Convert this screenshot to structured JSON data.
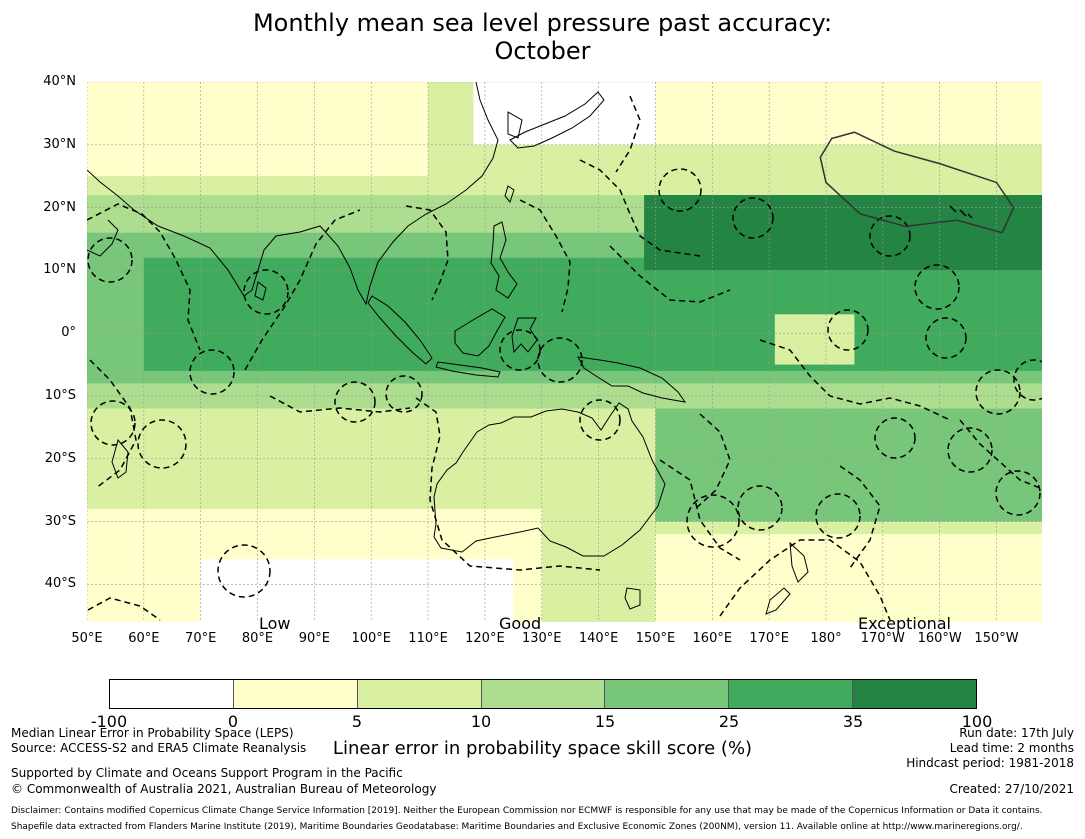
{
  "title_line1": "Monthly mean sea level pressure past accuracy:",
  "title_line2": "October",
  "map": {
    "lat_labels": [
      "40°N",
      "30°N",
      "20°N",
      "10°N",
      "0°",
      "10°S",
      "20°S",
      "30°S",
      "40°S"
    ],
    "lon_labels": [
      "50°E",
      "60°E",
      "70°E",
      "80°E",
      "90°E",
      "100°E",
      "110°E",
      "120°E",
      "130°E",
      "140°E",
      "150°E",
      "160°E",
      "170°E",
      "180°",
      "170°W",
      "160°W",
      "150°W"
    ],
    "category_labels": [
      "Low",
      "Good",
      "Exceptional"
    ],
    "extent": {
      "lon_min": 50,
      "lon_max": 218,
      "lat_min": -46,
      "lat_max": 40
    },
    "zones": [
      {
        "bin": 2,
        "lon_min": 50,
        "lon_max": 218,
        "lat_min": -46,
        "lat_max": 40
      },
      {
        "bin": 1,
        "lon_min": 150,
        "lon_max": 218,
        "lat_min": 30,
        "lat_max": 40
      },
      {
        "bin": 1,
        "lon_min": 50,
        "lon_max": 110,
        "lat_min": 25,
        "lat_max": 40
      },
      {
        "bin": 0,
        "lon_min": 118,
        "lon_max": 150,
        "lat_min": 30,
        "lat_max": 40
      },
      {
        "bin": 3,
        "lon_min": 50,
        "lon_max": 218,
        "lat_min": -12,
        "lat_max": 22
      },
      {
        "bin": 4,
        "lon_min": 50,
        "lon_max": 218,
        "lat_min": -8,
        "lat_max": 16
      },
      {
        "bin": 5,
        "lon_min": 60,
        "lon_max": 218,
        "lat_min": -6,
        "lat_max": 12
      },
      {
        "bin": 6,
        "lon_min": 148,
        "lon_max": 218,
        "lat_min": 10,
        "lat_max": 22
      },
      {
        "bin": 1,
        "lon_min": 50,
        "lon_max": 130,
        "lat_min": -46,
        "lat_max": -28
      },
      {
        "bin": 0,
        "lon_min": 70,
        "lon_max": 125,
        "lat_min": -46,
        "lat_max": -36
      },
      {
        "bin": 1,
        "lon_min": 150,
        "lon_max": 218,
        "lat_min": -46,
        "lat_max": -32
      },
      {
        "bin": 4,
        "lon_min": 150,
        "lon_max": 218,
        "lat_min": -30,
        "lat_max": -12
      },
      {
        "bin": 2,
        "lon_min": 171,
        "lon_max": 185,
        "lat_min": -5,
        "lat_max": 3
      }
    ],
    "highlight_region": {
      "lon": [
        181,
        185,
        192,
        200,
        210,
        213,
        211,
        203,
        194,
        186,
        180,
        179,
        181
      ],
      "lat": [
        31,
        32,
        29,
        27,
        24,
        20,
        16,
        18,
        17,
        19,
        24,
        28,
        31
      ]
    }
  },
  "colorbar": {
    "ticks": [
      "-100",
      "0",
      "5",
      "10",
      "15",
      "25",
      "35",
      "100"
    ],
    "colors": [
      "#ffffff",
      "#ffffcc",
      "#d9f0a3",
      "#addd8e",
      "#78c679",
      "#41ab5d",
      "#238443"
    ],
    "label": "Linear error in probability space skill score (%)"
  },
  "footer": {
    "left1": "Median Linear Error in Probability Space (LEPS)",
    "left2": "Source: ACCESS-S2 and ERA5 Climate Reanalysis",
    "left3": "Supported by Climate and Oceans Support Program in the Pacific",
    "left4": "© Commonwealth of Australia 2021, Australian Bureau of Meteorology",
    "right1": "Run date: 17th July",
    "right2": "Lead time: 2 months",
    "right3": "Hindcast period: 1981-2018",
    "created": "Created: 27/10/2021",
    "disclaimer1": "Disclaimer: Contains modified Copernicus Climate Change Service Information [2019]. Neither the European Commission nor ECMWF is responsible for any use that may be made of the Copernicus Information or Data it contains.",
    "disclaimer2": "Shapefile data extracted from Flanders Marine Institute (2019), Maritime Boundaries Geodatabase: Maritime Boundaries and Exclusive Economic Zones (200NM), version 11. Available online at http://www.marineregions.org/."
  }
}
